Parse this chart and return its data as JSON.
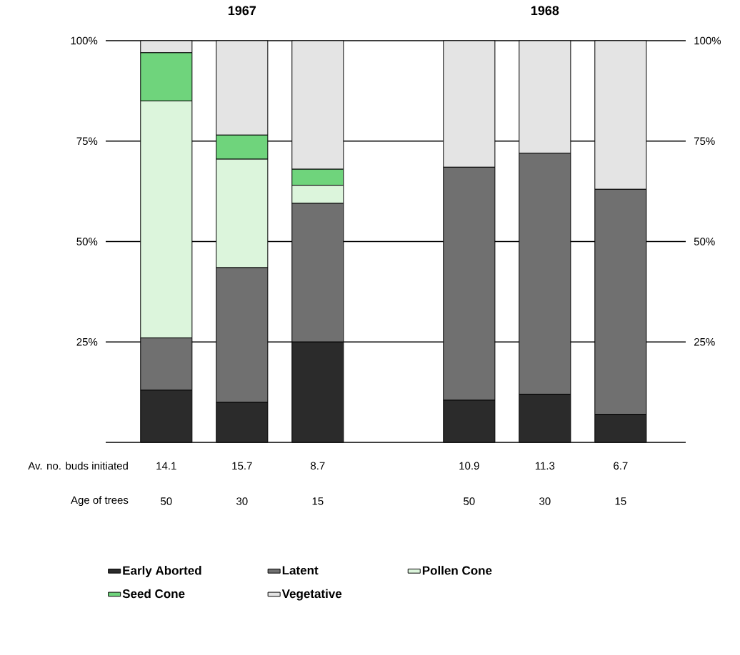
{
  "chart_data": {
    "type": "bar",
    "stacked": true,
    "categories": [
      "50",
      "30",
      "15",
      null,
      "50",
      "30",
      "15"
    ],
    "xlabel": "Age of trees",
    "series": [
      {
        "name": "Early Aborted",
        "color": "#2b2b2b",
        "values": [
          13,
          10,
          25,
          null,
          10.5,
          12,
          7
        ]
      },
      {
        "name": "Latent",
        "color": "#707070",
        "values": [
          13,
          33.5,
          34.5,
          null,
          58,
          60,
          56
        ]
      },
      {
        "name": "Pollen Cone",
        "color": "#dcf5dc",
        "values": [
          59,
          27,
          4.5,
          null,
          0,
          0,
          0
        ]
      },
      {
        "name": "Seed Cone",
        "color": "#6fd47c",
        "values": [
          12,
          6,
          4,
          null,
          0,
          0,
          0
        ]
      },
      {
        "name": "Vegetative",
        "color": "#e4e4e4",
        "values": [
          3,
          23.5,
          32,
          null,
          31.5,
          28,
          37
        ]
      }
    ],
    "ylim": [
      0,
      100
    ],
    "yticks": [
      {
        "value": 25,
        "label": "25%"
      },
      {
        "value": 50,
        "label": "50%"
      },
      {
        "value": 75,
        "label": "75%"
      },
      {
        "value": 100,
        "label": "100%"
      }
    ],
    "y2lim": [
      0,
      100
    ],
    "y2ticks": [
      {
        "value": 25,
        "label": "25%"
      },
      {
        "value": 50,
        "label": "50%"
      },
      {
        "value": 75,
        "label": "75%"
      },
      {
        "value": 100,
        "label": "100%"
      }
    ],
    "grid": "y",
    "legend": "bottom",
    "annotations": [
      "1967",
      "1968",
      "Av. no. buds initiated",
      "14.1",
      "15.7",
      "8.7",
      "10.9",
      "11.3",
      "6.7"
    ]
  }
}
